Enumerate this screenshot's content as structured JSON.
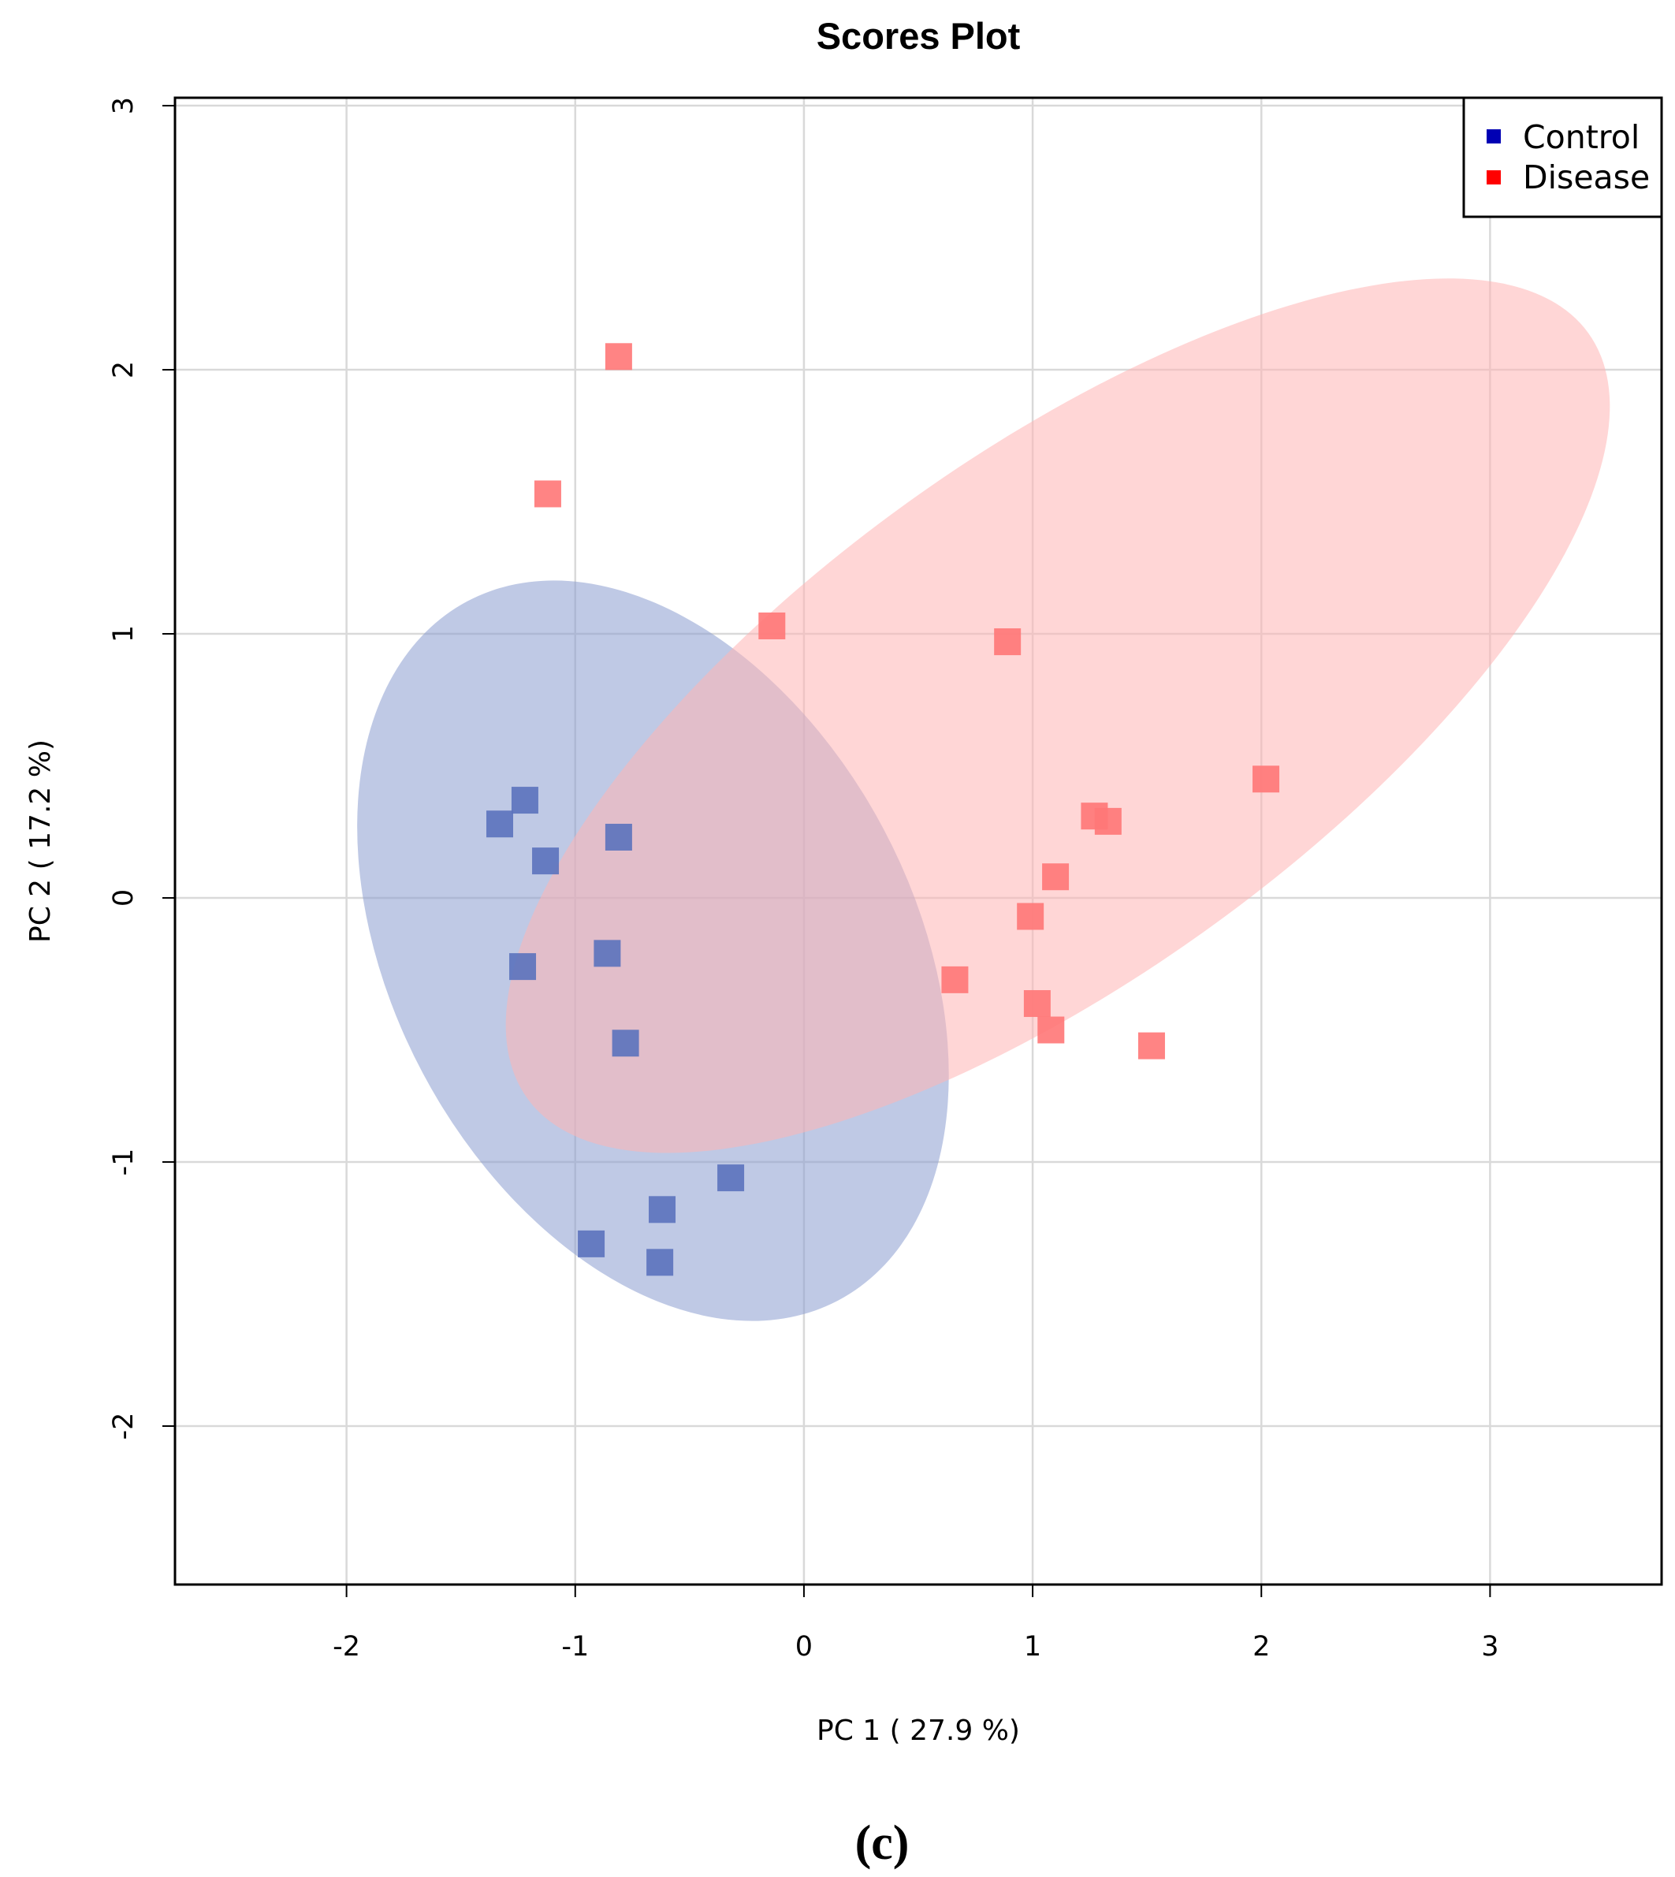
{
  "chart_data": {
    "type": "scatter",
    "title": "Scores Plot",
    "xlabel": "PC 1 ( 27.9 %)",
    "ylabel": "PC 2 ( 17.2 %)",
    "xlim": [
      -2.75,
      3.75
    ],
    "ylim": [
      -2.6,
      3.03
    ],
    "x_ticks": [
      -2,
      -1,
      0,
      1,
      2,
      3
    ],
    "y_ticks": [
      -2,
      -1,
      0,
      1,
      2,
      3
    ],
    "x_tick_labels": [
      "-2",
      "-1",
      "0",
      "1",
      "2",
      "3"
    ],
    "y_tick_labels": [
      "-2",
      "-1",
      "0",
      "1",
      "2",
      "3"
    ],
    "grid": true,
    "legend": {
      "position": "top-right"
    },
    "panel_label": "(c)",
    "series": [
      {
        "name": "Control",
        "color": "#0000b4",
        "marker_color": "#5b72bd",
        "ellipse_color": "#8a9cd0",
        "ellipse": {
          "cx": -0.66,
          "cy": -0.2,
          "rx": 1.73,
          "ry": 1.14,
          "angle_deg": 62
        },
        "x": [
          -1.33,
          -1.22,
          -1.13,
          -0.81,
          -1.23,
          -0.86,
          -0.78,
          -0.32,
          -0.62,
          -0.93,
          -0.63
        ],
        "y": [
          0.28,
          0.37,
          0.14,
          0.23,
          -0.26,
          -0.21,
          -0.55,
          -1.06,
          -1.18,
          -1.31,
          -1.38
        ]
      },
      {
        "name": "Disease",
        "color": "#ff0000",
        "marker_color": "#ff7777",
        "ellipse_color": "#ffb4b4",
        "ellipse": {
          "cx": 1.11,
          "cy": 0.69,
          "rx": 2.86,
          "ry": 1.14,
          "angle_deg": -35.8
        },
        "x": [
          -0.81,
          -1.12,
          -0.14,
          0.89,
          2.02,
          1.27,
          1.33,
          1.1,
          0.99,
          0.66,
          1.02,
          1.08,
          1.52
        ],
        "y": [
          2.05,
          1.53,
          1.03,
          0.97,
          0.45,
          0.31,
          0.29,
          0.08,
          -0.07,
          -0.31,
          -0.4,
          -0.5,
          -0.56
        ]
      }
    ]
  }
}
